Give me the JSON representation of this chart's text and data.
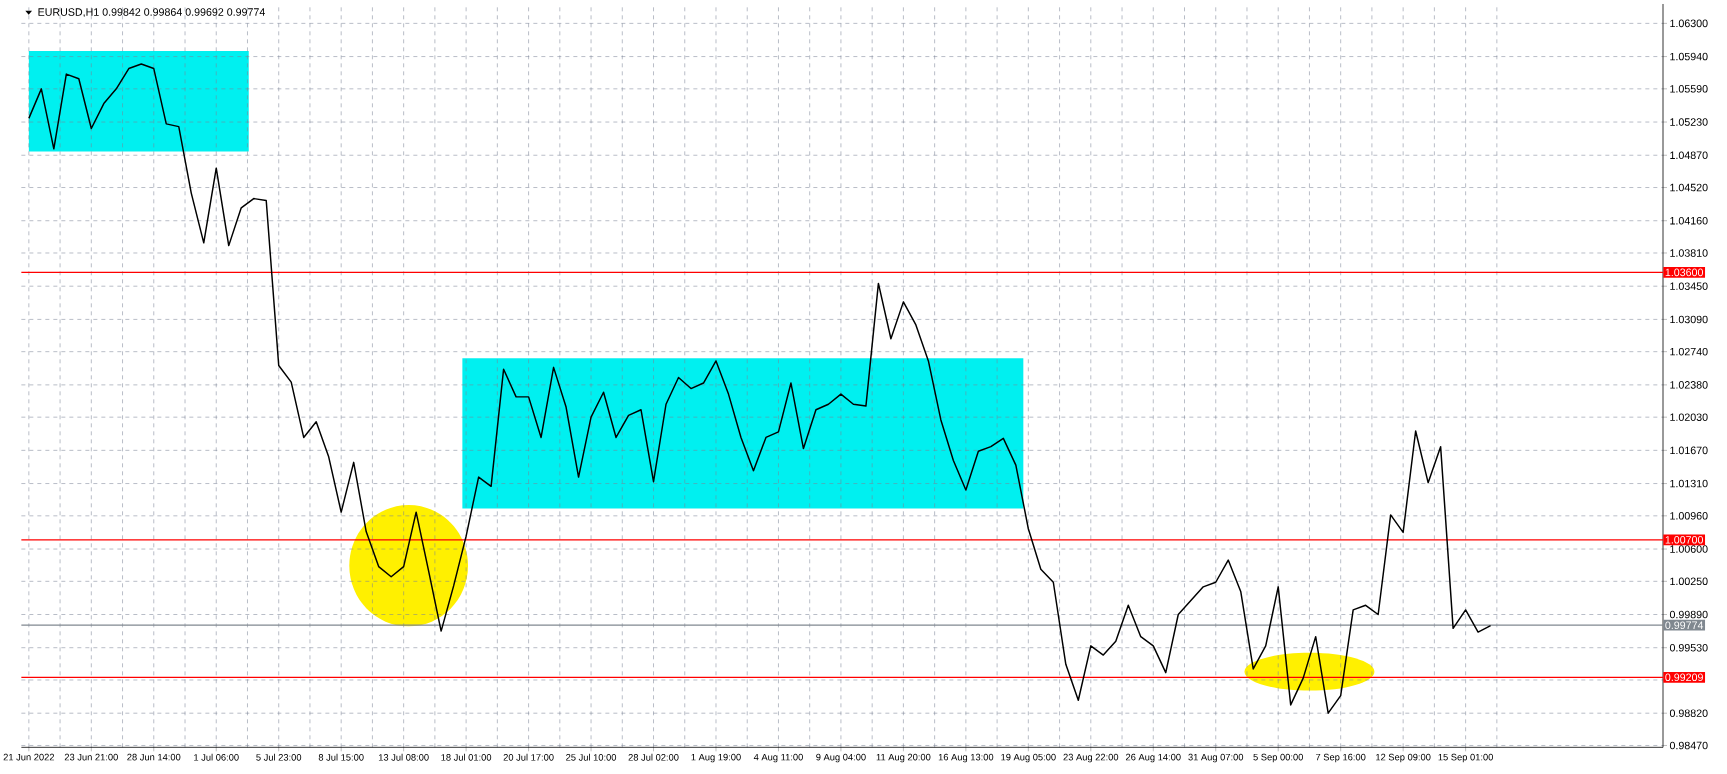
{
  "chart_data": {
    "type": "line",
    "title": "EURUSD,H1  0.99842 0.99864 0.99692 0.99774",
    "categories": [
      "21 Jun 2022",
      null,
      null,
      null,
      null,
      "23 Jun 21:00",
      null,
      null,
      null,
      null,
      "28 Jun 14:00",
      null,
      null,
      null,
      null,
      "1 Jul 06:00",
      null,
      null,
      null,
      null,
      "5 Jul 23:00",
      null,
      null,
      null,
      null,
      "8 Jul 15:00",
      null,
      null,
      null,
      null,
      "13 Jul 08:00",
      null,
      null,
      null,
      null,
      "18 Jul 01:00",
      null,
      null,
      null,
      null,
      "20 Jul 17:00",
      null,
      null,
      null,
      null,
      "25 Jul 10:00",
      null,
      null,
      null,
      null,
      "28 Jul 02:00",
      null,
      null,
      null,
      null,
      "1 Aug 19:00",
      null,
      null,
      null,
      null,
      "4 Aug 11:00",
      null,
      null,
      null,
      null,
      "9 Aug 04:00",
      null,
      null,
      null,
      null,
      "11 Aug 20:00",
      null,
      null,
      null,
      null,
      "16 Aug 13:00",
      null,
      null,
      null,
      null,
      "19 Aug 05:00",
      null,
      null,
      null,
      null,
      "23 Aug 22:00",
      null,
      null,
      null,
      null,
      "26 Aug 14:00",
      null,
      null,
      null,
      null,
      "31 Aug 07:00",
      null,
      null,
      null,
      null,
      "5 Sep 00:00",
      null,
      null,
      null,
      null,
      "7 Sep 16:00",
      null,
      null,
      null,
      null,
      "12 Sep 09:00",
      null,
      null,
      null,
      null,
      "15 Sep 01:00",
      null,
      null,
      null,
      null,
      null,
      null,
      null,
      null,
      null,
      null,
      null,
      null,
      null,
      null,
      null
    ],
    "series": [
      {
        "color": "#000000",
        "values": [
          1.0527,
          1.0559,
          1.0494,
          1.0575,
          1.057,
          1.0516,
          1.0543,
          1.0559,
          1.0581,
          1.0586,
          1.0581,
          1.0521,
          1.0518,
          1.0446,
          1.0392,
          1.0473,
          1.0389,
          1.043,
          1.044,
          1.0438,
          1.0259,
          1.0241,
          1.0181,
          1.0198,
          1.016,
          1.01,
          1.0154,
          1.0079,
          1.0041,
          1.003,
          1.0041,
          1.01,
          1.0036,
          0.9971,
          1.002,
          1.0074,
          1.0138,
          1.0128,
          1.0255,
          1.0225,
          1.0225,
          1.0181,
          1.0257,
          1.0214,
          1.0138,
          1.0203,
          1.023,
          1.0181,
          1.0205,
          1.0211,
          1.0133,
          1.0217,
          1.0246,
          1.0234,
          1.024,
          1.0264,
          1.0228,
          1.0181,
          1.0145,
          1.0181,
          1.0187,
          1.024,
          1.0169,
          1.0211,
          1.0217,
          1.0228,
          1.0217,
          1.0215,
          1.0348,
          1.0288,
          1.0328,
          1.0303,
          1.0264,
          1.02,
          1.0156,
          1.0124,
          1.0166,
          1.0171,
          1.018,
          1.0151,
          1.0082,
          1.0038,
          1.0024,
          0.9935,
          0.9896,
          0.9955,
          0.9945,
          0.996,
          0.9999,
          0.9965,
          0.9955,
          0.9926,
          0.9989,
          1.0004,
          1.0019,
          1.0024,
          1.0048,
          1.0014,
          0.993,
          0.9955,
          1.0019,
          0.9891,
          0.992,
          0.9965,
          0.9882,
          0.9901,
          0.9994,
          0.9999,
          0.9989,
          1.0097,
          1.0078,
          1.0188,
          1.0132,
          1.0171,
          0.9974,
          0.9994,
          0.997,
          0.9977,
          null,
          null,
          null,
          null,
          null,
          null,
          null,
          null,
          null,
          null,
          null,
          null,
          null
        ]
      }
    ],
    "ylim": [
      0.9845,
      1.0651
    ],
    "yticks": [
      {
        "value": 0.9847,
        "label": "0.98470"
      },
      {
        "value": 0.9882,
        "label": "0.98820"
      },
      {
        "value": 0.9918,
        "label": null
      },
      {
        "value": 0.9953,
        "label": "0.99530"
      },
      {
        "value": 0.9989,
        "label": "0.99890"
      },
      {
        "value": 1.0025,
        "label": "1.00250"
      },
      {
        "value": 1.006,
        "label": "1.00600"
      },
      {
        "value": 1.0096,
        "label": "1.00960"
      },
      {
        "value": 1.0131,
        "label": "1.01310"
      },
      {
        "value": 1.0167,
        "label": "1.01670"
      },
      {
        "value": 1.0203,
        "label": "1.02030"
      },
      {
        "value": 1.0238,
        "label": "1.02380"
      },
      {
        "value": 1.0274,
        "label": "1.02740"
      },
      {
        "value": 1.0309,
        "label": "1.03090"
      },
      {
        "value": 1.0345,
        "label": "1.03450"
      },
      {
        "value": 1.0381,
        "label": "1.03810"
      },
      {
        "value": 1.0416,
        "label": "1.04160"
      },
      {
        "value": 1.0452,
        "label": "1.04520"
      },
      {
        "value": 1.0487,
        "label": "1.04870"
      },
      {
        "value": 1.0523,
        "label": "1.05230"
      },
      {
        "value": 1.0559,
        "label": "1.05590"
      },
      {
        "value": 1.0594,
        "label": "1.05940"
      },
      {
        "value": 1.063,
        "label": "1.06300"
      }
    ],
    "ref_lines": [
      {
        "axis": "y",
        "value": 1.036,
        "label": "1.03600",
        "color": "#ff0000"
      },
      {
        "axis": "y",
        "value": 1.007,
        "label": "1.00700",
        "color": "#ff0000"
      },
      {
        "axis": "y",
        "value": 0.99209,
        "label": "0.99209",
        "color": "#ff0000"
      },
      {
        "axis": "y",
        "value": 0.99774,
        "label": "0.99774",
        "color": "#808890"
      }
    ],
    "grid": true
  }
}
